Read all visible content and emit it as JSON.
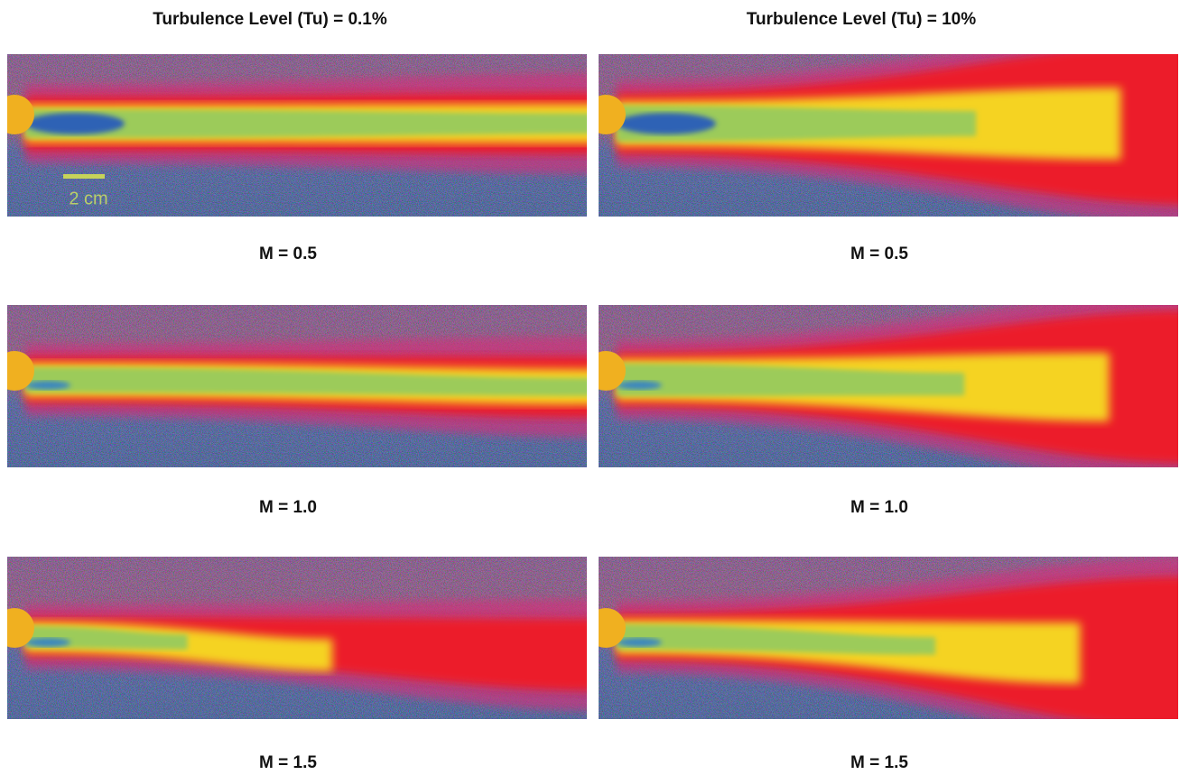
{
  "columns": [
    {
      "title": "Turbulence Level (Tu) = 0.1%",
      "panels": [
        {
          "label": "M = 0.5"
        },
        {
          "label": "M = 1.0"
        },
        {
          "label": "M = 1.5"
        }
      ]
    },
    {
      "title": "Turbulence Level (Tu) = 10%",
      "panels": [
        {
          "label": "M = 0.5"
        },
        {
          "label": "M = 1.0"
        },
        {
          "label": "M = 1.5"
        }
      ]
    }
  ],
  "scale_bar": "2 cm"
}
